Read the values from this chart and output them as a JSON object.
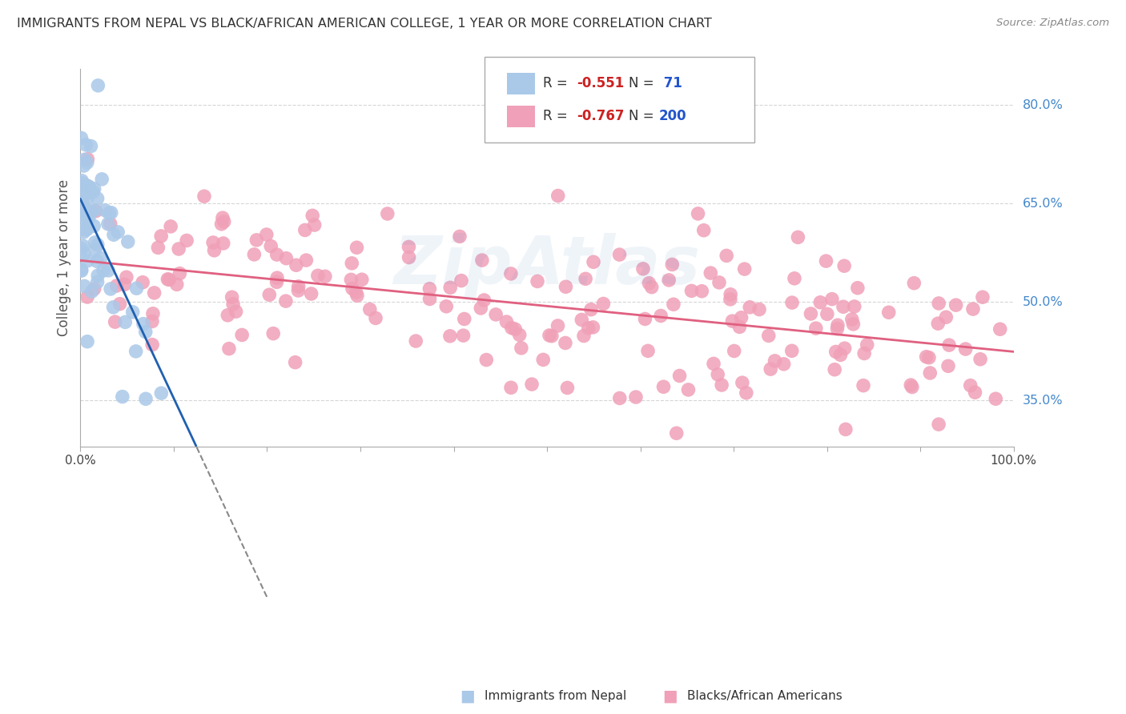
{
  "title": "IMMIGRANTS FROM NEPAL VS BLACK/AFRICAN AMERICAN COLLEGE, 1 YEAR OR MORE CORRELATION CHART",
  "source": "Source: ZipAtlas.com",
  "ylabel": "College, 1 year or more",
  "x_min": 0.0,
  "x_max": 1.0,
  "y_min": 0.28,
  "y_max": 0.855,
  "y_ticks": [
    0.35,
    0.5,
    0.65,
    0.8
  ],
  "y_tick_labels": [
    "35.0%",
    "50.0%",
    "65.0%",
    "80.0%"
  ],
  "x_ticks": [
    0.0,
    0.1,
    0.2,
    0.3,
    0.4,
    0.5,
    0.6,
    0.7,
    0.8,
    0.9,
    1.0
  ],
  "x_tick_labels": [
    "0.0%",
    "",
    "",
    "",
    "",
    "",
    "",
    "",
    "",
    "",
    "100.0%"
  ],
  "legend_labels": [
    "Immigrants from Nepal",
    "Blacks/African Americans"
  ],
  "blue_R": -0.551,
  "blue_N": 71,
  "pink_R": -0.767,
  "pink_N": 200,
  "blue_color": "#aac8e8",
  "pink_color": "#f0a0b8",
  "blue_line_color": "#2060b0",
  "pink_line_color": "#e06080",
  "background_color": "#ffffff",
  "grid_color": "#cccccc",
  "title_color": "#333333",
  "legend_r_color": "#cc2222",
  "legend_n_color": "#2255cc",
  "watermark": "ZipAtlas",
  "watermark_color": "#6699cc",
  "seed_blue": 42,
  "seed_pink": 99
}
